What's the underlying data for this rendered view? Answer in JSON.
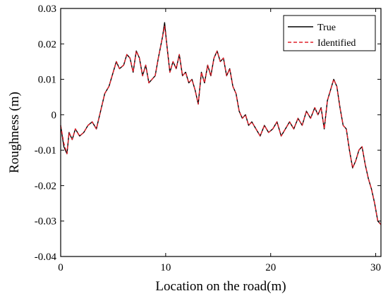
{
  "chart_data": {
    "type": "line",
    "xlabel": "Location on the road(m)",
    "ylabel": "Roughness (m)",
    "xlim": [
      0,
      30.5
    ],
    "ylim": [
      -0.04,
      0.03
    ],
    "xticks": [
      0,
      10,
      20,
      30
    ],
    "xtick_labels": [
      "0",
      "10",
      "20",
      "30"
    ],
    "yticks": [
      0.03,
      0.02,
      0.01,
      0,
      -0.01,
      -0.02,
      -0.03,
      -0.04
    ],
    "ytick_labels": [
      "0.03",
      "0.02",
      "0.01",
      "0",
      "-0.01",
      "-0.02",
      "-0.03",
      "-0.04"
    ],
    "grid": false,
    "legend_position": "top-right",
    "series": [
      {
        "name": "True",
        "color": "#000000",
        "style": "solid",
        "x": [
          0,
          0.3,
          0.6,
          0.8,
          1.1,
          1.4,
          1.8,
          2.2,
          2.6,
          3.0,
          3.4,
          3.8,
          4.2,
          4.6,
          5.0,
          5.3,
          5.6,
          6.0,
          6.3,
          6.6,
          6.9,
          7.2,
          7.5,
          7.8,
          8.1,
          8.4,
          8.7,
          9.0,
          9.3,
          9.5,
          9.7,
          9.9,
          10.1,
          10.4,
          10.7,
          11.0,
          11.3,
          11.6,
          11.9,
          12.2,
          12.5,
          12.8,
          13.1,
          13.4,
          13.7,
          14.0,
          14.3,
          14.6,
          14.9,
          15.2,
          15.5,
          15.8,
          16.1,
          16.4,
          16.7,
          17.0,
          17.3,
          17.6,
          17.9,
          18.2,
          18.6,
          19.0,
          19.4,
          19.8,
          20.2,
          20.6,
          21.0,
          21.4,
          21.8,
          22.2,
          22.6,
          23.0,
          23.4,
          23.8,
          24.2,
          24.5,
          24.8,
          25.1,
          25.4,
          25.7,
          26.0,
          26.3,
          26.6,
          26.9,
          27.2,
          27.5,
          27.8,
          28.1,
          28.4,
          28.7,
          29.0,
          29.3,
          29.6,
          29.9,
          30.2,
          30.5
        ],
        "values": [
          -0.003,
          -0.009,
          -0.011,
          -0.005,
          -0.007,
          -0.004,
          -0.006,
          -0.005,
          -0.003,
          -0.002,
          -0.004,
          0.001,
          0.006,
          0.008,
          0.012,
          0.015,
          0.013,
          0.014,
          0.017,
          0.016,
          0.012,
          0.018,
          0.016,
          0.011,
          0.014,
          0.009,
          0.01,
          0.011,
          0.016,
          0.019,
          0.022,
          0.026,
          0.02,
          0.012,
          0.015,
          0.013,
          0.017,
          0.011,
          0.012,
          0.009,
          0.01,
          0.007,
          0.003,
          0.012,
          0.009,
          0.014,
          0.011,
          0.016,
          0.018,
          0.015,
          0.016,
          0.011,
          0.013,
          0.008,
          0.006,
          0.001,
          -0.001,
          0.0,
          -0.003,
          -0.002,
          -0.004,
          -0.006,
          -0.003,
          -0.005,
          -0.004,
          -0.002,
          -0.006,
          -0.004,
          -0.002,
          -0.004,
          -0.001,
          -0.003,
          0.001,
          -0.001,
          0.002,
          0.0,
          0.002,
          -0.004,
          0.004,
          0.007,
          0.01,
          0.008,
          0.002,
          -0.003,
          -0.004,
          -0.01,
          -0.015,
          -0.013,
          -0.01,
          -0.009,
          -0.014,
          -0.018,
          -0.021,
          -0.025,
          -0.03,
          -0.031
        ]
      },
      {
        "name": "Identified",
        "color": "#e0202a",
        "style": "dashed",
        "x": [
          0,
          0.3,
          0.6,
          0.8,
          1.1,
          1.4,
          1.8,
          2.2,
          2.6,
          3.0,
          3.4,
          3.8,
          4.2,
          4.6,
          5.0,
          5.3,
          5.6,
          6.0,
          6.3,
          6.6,
          6.9,
          7.2,
          7.5,
          7.8,
          8.1,
          8.4,
          8.7,
          9.0,
          9.3,
          9.5,
          9.7,
          9.9,
          10.1,
          10.4,
          10.7,
          11.0,
          11.3,
          11.6,
          11.9,
          12.2,
          12.5,
          12.8,
          13.1,
          13.4,
          13.7,
          14.0,
          14.3,
          14.6,
          14.9,
          15.2,
          15.5,
          15.8,
          16.1,
          16.4,
          16.7,
          17.0,
          17.3,
          17.6,
          17.9,
          18.2,
          18.6,
          19.0,
          19.4,
          19.8,
          20.2,
          20.6,
          21.0,
          21.4,
          21.8,
          22.2,
          22.6,
          23.0,
          23.4,
          23.8,
          24.2,
          24.5,
          24.8,
          25.1,
          25.4,
          25.7,
          26.0,
          26.3,
          26.6,
          26.9,
          27.2,
          27.5,
          27.8,
          28.1,
          28.4,
          28.7,
          29.0,
          29.3,
          29.6,
          29.9,
          30.2,
          30.5
        ],
        "values": [
          -0.003,
          -0.008,
          -0.011,
          -0.005,
          -0.007,
          -0.004,
          -0.006,
          -0.005,
          -0.003,
          -0.002,
          -0.004,
          0.001,
          0.006,
          0.008,
          0.012,
          0.015,
          0.013,
          0.014,
          0.017,
          0.016,
          0.012,
          0.018,
          0.016,
          0.011,
          0.014,
          0.009,
          0.01,
          0.011,
          0.016,
          0.019,
          0.022,
          0.025,
          0.02,
          0.012,
          0.015,
          0.013,
          0.017,
          0.011,
          0.012,
          0.009,
          0.01,
          0.007,
          0.003,
          0.012,
          0.009,
          0.014,
          0.011,
          0.016,
          0.018,
          0.015,
          0.016,
          0.011,
          0.013,
          0.008,
          0.006,
          0.001,
          -0.001,
          0.0,
          -0.003,
          -0.002,
          -0.004,
          -0.006,
          -0.003,
          -0.005,
          -0.004,
          -0.002,
          -0.006,
          -0.004,
          -0.002,
          -0.004,
          -0.001,
          -0.003,
          0.001,
          -0.001,
          0.002,
          0.0,
          0.002,
          -0.004,
          0.004,
          0.007,
          0.01,
          0.008,
          0.002,
          -0.003,
          -0.004,
          -0.01,
          -0.015,
          -0.013,
          -0.01,
          -0.009,
          -0.014,
          -0.018,
          -0.021,
          -0.025,
          -0.03,
          -0.031
        ]
      }
    ]
  }
}
